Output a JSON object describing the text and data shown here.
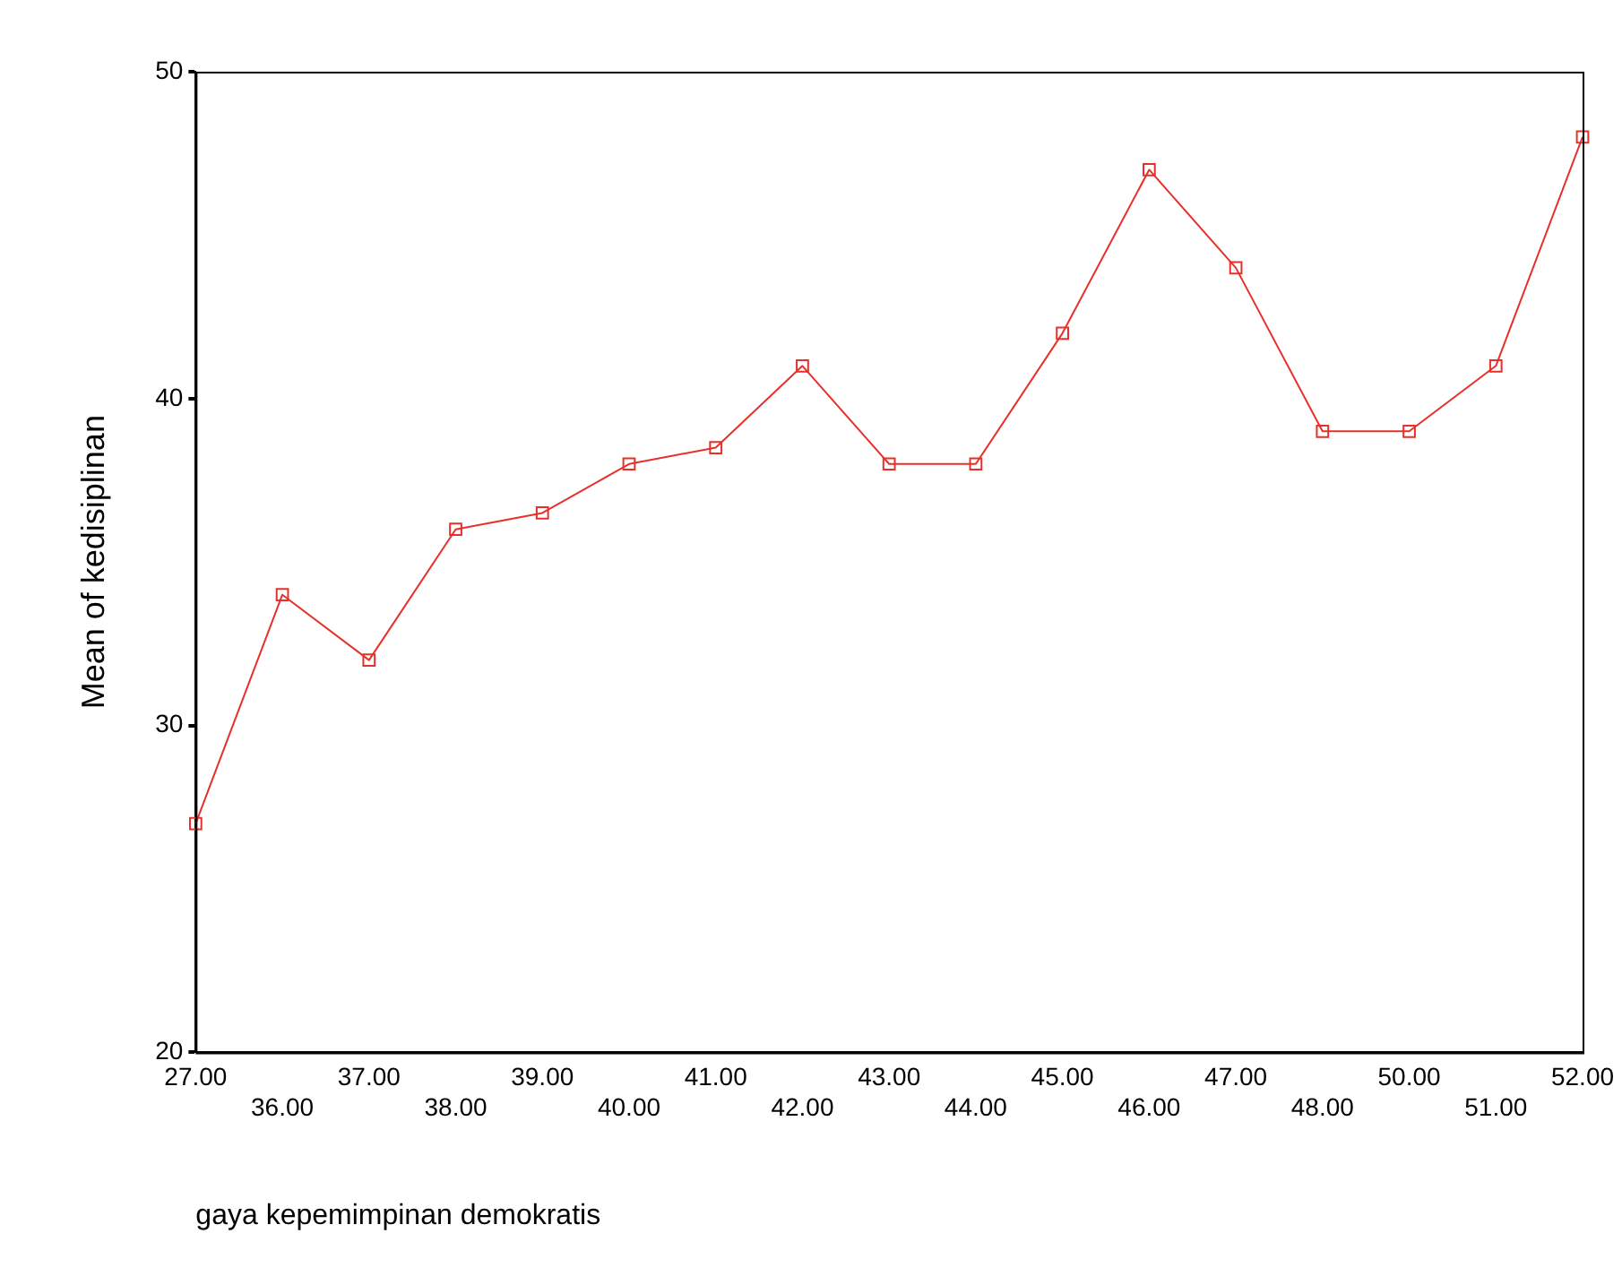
{
  "chart_data": {
    "type": "line",
    "xlabel": "gaya kepemimpinan demokratis",
    "ylabel": "Mean of kedisiplinan",
    "categories": [
      "27.00",
      "36.00",
      "37.00",
      "38.00",
      "39.00",
      "40.00",
      "41.00",
      "42.00",
      "43.00",
      "44.00",
      "45.00",
      "46.00",
      "47.00",
      "48.00",
      "50.00",
      "51.00",
      "52.00"
    ],
    "series": [
      {
        "color": "#e8302a",
        "values": [
          27,
          34,
          32,
          36,
          36.5,
          38,
          38.5,
          41,
          38,
          38,
          42,
          47,
          44,
          39,
          39,
          41,
          48
        ]
      }
    ],
    "ylim": [
      20,
      50
    ],
    "yticks": [
      20,
      30,
      40,
      50
    ],
    "grid": false,
    "legend": false,
    "marker": "square",
    "line_style": "solid"
  }
}
